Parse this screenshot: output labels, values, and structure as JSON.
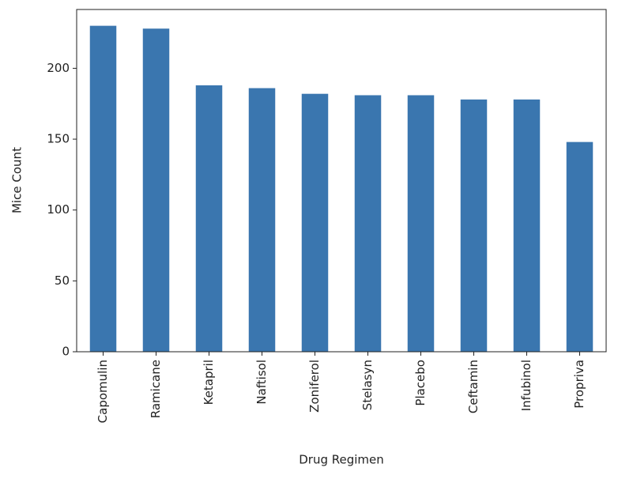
{
  "chart_data": {
    "type": "bar",
    "x_label": "Drug Regimen",
    "y_label": "Mice Count",
    "categories": [
      "Capomulin",
      "Ramicane",
      "Ketapril",
      "Naftisol",
      "Zoniferol",
      "Stelasyn",
      "Placebo",
      "Ceftamin",
      "Infubinol",
      "Propriva"
    ],
    "values": [
      230,
      228,
      188,
      186,
      182,
      181,
      181,
      178,
      178,
      148
    ],
    "color": "#3a76af",
    "ylim": [
      0,
      241.5
    ],
    "yticks": [
      0,
      50,
      100,
      150,
      200
    ],
    "grid": false
  }
}
